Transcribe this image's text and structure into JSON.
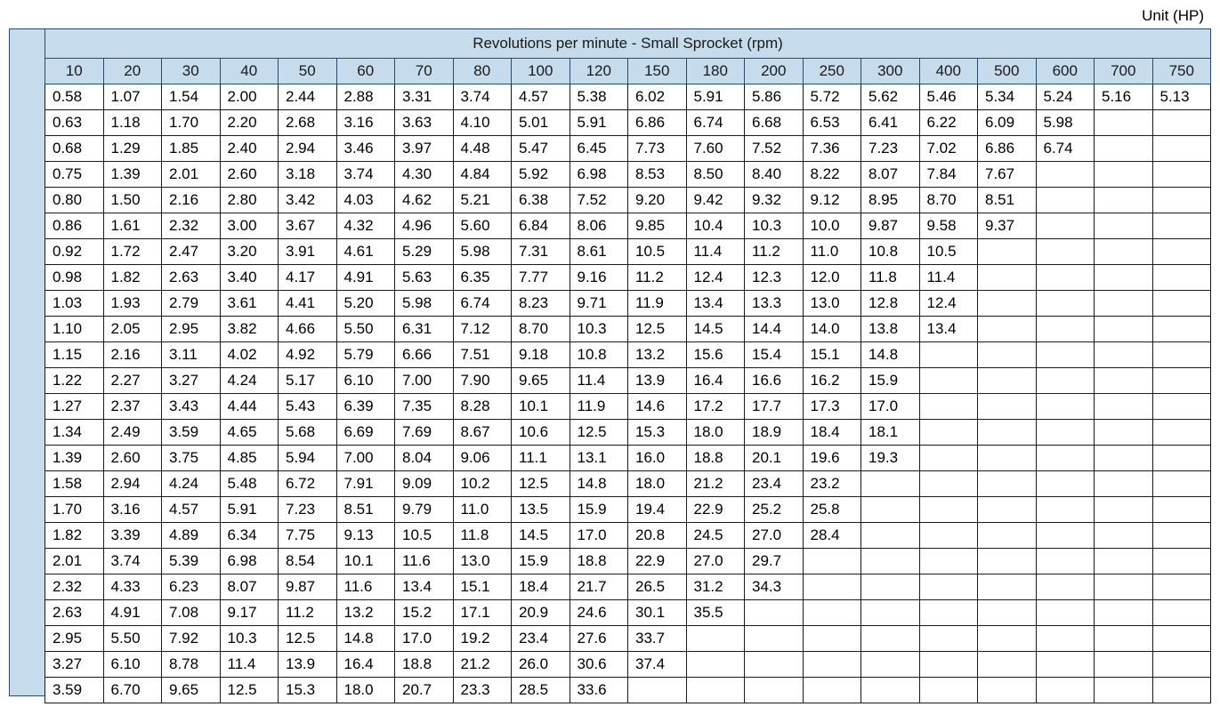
{
  "unit_label": "Unit (HP)",
  "table": {
    "type": "table",
    "spanner": "Revolutions per minute - Small Sprocket (rpm)",
    "header_bg": "#c6dbeb",
    "header_border": "#2a4b6a",
    "cell_border": "#1a1a1a",
    "text_color": "#000000",
    "background_color": "#ffffff",
    "font_size_header": 17,
    "font_size_cell": 17,
    "columns": [
      "10",
      "20",
      "30",
      "40",
      "50",
      "60",
      "70",
      "80",
      "100",
      "120",
      "150",
      "180",
      "200",
      "250",
      "300",
      "400",
      "500",
      "600",
      "700",
      "750"
    ],
    "rows": [
      [
        "0.58",
        "1.07",
        "1.54",
        "2.00",
        "2.44",
        "2.88",
        "3.31",
        "3.74",
        "4.57",
        "5.38",
        "6.02",
        "5.91",
        "5.86",
        "5.72",
        "5.62",
        "5.46",
        "5.34",
        "5.24",
        "5.16",
        "5.13"
      ],
      [
        "0.63",
        "1.18",
        "1.70",
        "2.20",
        "2.68",
        "3.16",
        "3.63",
        "4.10",
        "5.01",
        "5.91",
        "6.86",
        "6.74",
        "6.68",
        "6.53",
        "6.41",
        "6.22",
        "6.09",
        "5.98",
        "",
        ""
      ],
      [
        "0.68",
        "1.29",
        "1.85",
        "2.40",
        "2.94",
        "3.46",
        "3.97",
        "4.48",
        "5.47",
        "6.45",
        "7.73",
        "7.60",
        "7.52",
        "7.36",
        "7.23",
        "7.02",
        "6.86",
        "6.74",
        "",
        ""
      ],
      [
        "0.75",
        "1.39",
        "2.01",
        "2.60",
        "3.18",
        "3.74",
        "4.30",
        "4.84",
        "5.92",
        "6.98",
        "8.53",
        "8.50",
        "8.40",
        "8.22",
        "8.07",
        "7.84",
        "7.67",
        "",
        "",
        ""
      ],
      [
        "0.80",
        "1.50",
        "2.16",
        "2.80",
        "3.42",
        "4.03",
        "4.62",
        "5.21",
        "6.38",
        "7.52",
        "9.20",
        "9.42",
        "9.32",
        "9.12",
        "8.95",
        "8.70",
        "8.51",
        "",
        "",
        ""
      ],
      [
        "0.86",
        "1.61",
        "2.32",
        "3.00",
        "3.67",
        "4.32",
        "4.96",
        "5.60",
        "6.84",
        "8.06",
        "9.85",
        "10.4",
        "10.3",
        "10.0",
        "9.87",
        "9.58",
        "9.37",
        "",
        "",
        ""
      ],
      [
        "0.92",
        "1.72",
        "2.47",
        "3.20",
        "3.91",
        "4.61",
        "5.29",
        "5.98",
        "7.31",
        "8.61",
        "10.5",
        "11.4",
        "11.2",
        "11.0",
        "10.8",
        "10.5",
        "",
        "",
        "",
        ""
      ],
      [
        "0.98",
        "1.82",
        "2.63",
        "3.40",
        "4.17",
        "4.91",
        "5.63",
        "6.35",
        "7.77",
        "9.16",
        "11.2",
        "12.4",
        "12.3",
        "12.0",
        "11.8",
        "11.4",
        "",
        "",
        "",
        ""
      ],
      [
        "1.03",
        "1.93",
        "2.79",
        "3.61",
        "4.41",
        "5.20",
        "5.98",
        "6.74",
        "8.23",
        "9.71",
        "11.9",
        "13.4",
        "13.3",
        "13.0",
        "12.8",
        "12.4",
        "",
        "",
        "",
        ""
      ],
      [
        "1.10",
        "2.05",
        "2.95",
        "3.82",
        "4.66",
        "5.50",
        "6.31",
        "7.12",
        "8.70",
        "10.3",
        "12.5",
        "14.5",
        "14.4",
        "14.0",
        "13.8",
        "13.4",
        "",
        "",
        "",
        ""
      ],
      [
        "1.15",
        "2.16",
        "3.11",
        "4.02",
        "4.92",
        "5.79",
        "6.66",
        "7.51",
        "9.18",
        "10.8",
        "13.2",
        "15.6",
        "15.4",
        "15.1",
        "14.8",
        "",
        "",
        "",
        "",
        ""
      ],
      [
        "1.22",
        "2.27",
        "3.27",
        "4.24",
        "5.17",
        "6.10",
        "7.00",
        "7.90",
        "9.65",
        "11.4",
        "13.9",
        "16.4",
        "16.6",
        "16.2",
        "15.9",
        "",
        "",
        "",
        "",
        ""
      ],
      [
        "1.27",
        "2.37",
        "3.43",
        "4.44",
        "5.43",
        "6.39",
        "7.35",
        "8.28",
        "10.1",
        "11.9",
        "14.6",
        "17.2",
        "17.7",
        "17.3",
        "17.0",
        "",
        "",
        "",
        "",
        ""
      ],
      [
        "1.34",
        "2.49",
        "3.59",
        "4.65",
        "5.68",
        "6.69",
        "7.69",
        "8.67",
        "10.6",
        "12.5",
        "15.3",
        "18.0",
        "18.9",
        "18.4",
        "18.1",
        "",
        "",
        "",
        "",
        ""
      ],
      [
        "1.39",
        "2.60",
        "3.75",
        "4.85",
        "5.94",
        "7.00",
        "8.04",
        "9.06",
        "11.1",
        "13.1",
        "16.0",
        "18.8",
        "20.1",
        "19.6",
        "19.3",
        "",
        "",
        "",
        "",
        ""
      ],
      [
        "1.58",
        "2.94",
        "4.24",
        "5.48",
        "6.72",
        "7.91",
        "9.09",
        "10.2",
        "12.5",
        "14.8",
        "18.0",
        "21.2",
        "23.4",
        "23.2",
        "",
        "",
        "",
        "",
        "",
        ""
      ],
      [
        "1.70",
        "3.16",
        "4.57",
        "5.91",
        "7.23",
        "8.51",
        "9.79",
        "11.0",
        "13.5",
        "15.9",
        "19.4",
        "22.9",
        "25.2",
        "25.8",
        "",
        "",
        "",
        "",
        "",
        ""
      ],
      [
        "1.82",
        "3.39",
        "4.89",
        "6.34",
        "7.75",
        "9.13",
        "10.5",
        "11.8",
        "14.5",
        "17.0",
        "20.8",
        "24.5",
        "27.0",
        "28.4",
        "",
        "",
        "",
        "",
        "",
        ""
      ],
      [
        "2.01",
        "3.74",
        "5.39",
        "6.98",
        "8.54",
        "10.1",
        "11.6",
        "13.0",
        "15.9",
        "18.8",
        "22.9",
        "27.0",
        "29.7",
        "",
        "",
        "",
        "",
        "",
        "",
        ""
      ],
      [
        "2.32",
        "4.33",
        "6.23",
        "8.07",
        "9.87",
        "11.6",
        "13.4",
        "15.1",
        "18.4",
        "21.7",
        "26.5",
        "31.2",
        "34.3",
        "",
        "",
        "",
        "",
        "",
        "",
        ""
      ],
      [
        "2.63",
        "4.91",
        "7.08",
        "9.17",
        "11.2",
        "13.2",
        "15.2",
        "17.1",
        "20.9",
        "24.6",
        "30.1",
        "35.5",
        "",
        "",
        "",
        "",
        "",
        "",
        "",
        ""
      ],
      [
        "2.95",
        "5.50",
        "7.92",
        "10.3",
        "12.5",
        "14.8",
        "17.0",
        "19.2",
        "23.4",
        "27.6",
        "33.7",
        "",
        "",
        "",
        "",
        "",
        "",
        "",
        "",
        ""
      ],
      [
        "3.27",
        "6.10",
        "8.78",
        "11.4",
        "13.9",
        "16.4",
        "18.8",
        "21.2",
        "26.0",
        "30.6",
        "37.4",
        "",
        "",
        "",
        "",
        "",
        "",
        "",
        "",
        ""
      ],
      [
        "3.59",
        "6.70",
        "9.65",
        "12.5",
        "15.3",
        "18.0",
        "20.7",
        "23.3",
        "28.5",
        "33.6",
        "",
        "",
        "",
        "",
        "",
        "",
        "",
        "",
        "",
        ""
      ]
    ]
  }
}
